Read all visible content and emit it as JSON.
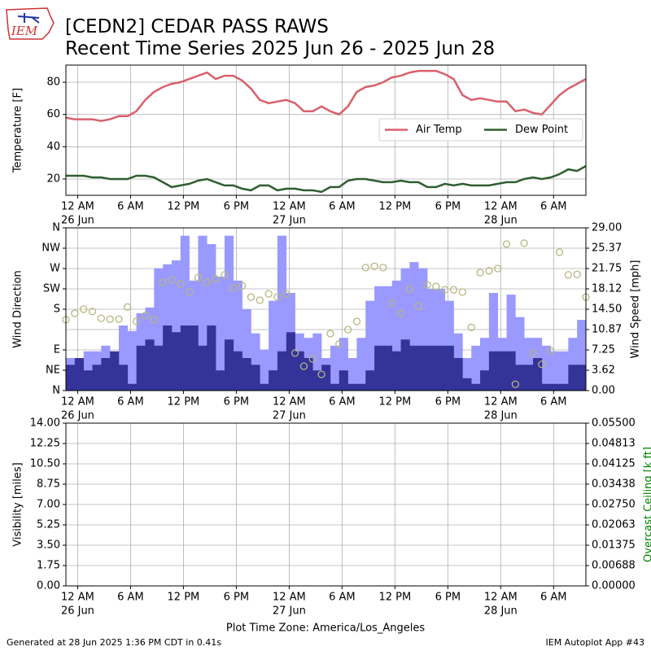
{
  "title": "[CEDN2] CEDAR PASS RAWS",
  "subtitle": "Recent Time Series 2025 Jun 26 - 2025 Jun 28",
  "logo": "IEM",
  "xlabel": "Plot Time Zone: America/Los_Angeles",
  "footer_left": "Generated at 28 Jun 2025 1:36 PM CDT in 0.41s",
  "footer_right": "IEM Autoplot App #43",
  "chart_data": [
    {
      "type": "line",
      "ylabel": "Temperature [F]",
      "xlim": [
        "2025-06-25T22:40",
        "2025-06-28T09:40"
      ],
      "xticks": [
        {
          "value": "2025-06-26T00:00",
          "label": "12 AM",
          "date": "26 Jun"
        },
        {
          "value": "2025-06-26T06:00",
          "label": "6 AM"
        },
        {
          "value": "2025-06-26T12:00",
          "label": "12 PM"
        },
        {
          "value": "2025-06-26T18:00",
          "label": "6 PM"
        },
        {
          "value": "2025-06-27T00:00",
          "label": "12 AM",
          "date": "27 Jun"
        },
        {
          "value": "2025-06-27T06:00",
          "label": "6 AM"
        },
        {
          "value": "2025-06-27T12:00",
          "label": "12 PM"
        },
        {
          "value": "2025-06-27T18:00",
          "label": "6 PM"
        },
        {
          "value": "2025-06-28T00:00",
          "label": "12 AM",
          "date": "28 Jun"
        },
        {
          "value": "2025-06-28T06:00",
          "label": "6 AM"
        }
      ],
      "ylim": [
        9.9,
        90.6
      ],
      "yticks": [
        20,
        40,
        60,
        80
      ],
      "grid": "y",
      "legend": "center right",
      "x": [
        "2025-06-25T22:40",
        "2025-06-25T23:40",
        "2025-06-26T00:40",
        "2025-06-26T01:40",
        "2025-06-26T02:40",
        "2025-06-26T03:40",
        "2025-06-26T04:40",
        "2025-06-26T05:40",
        "2025-06-26T06:40",
        "2025-06-26T07:40",
        "2025-06-26T08:40",
        "2025-06-26T09:40",
        "2025-06-26T10:40",
        "2025-06-26T11:40",
        "2025-06-26T12:40",
        "2025-06-26T13:40",
        "2025-06-26T14:40",
        "2025-06-26T15:40",
        "2025-06-26T16:40",
        "2025-06-26T17:40",
        "2025-06-26T18:40",
        "2025-06-26T19:40",
        "2025-06-26T20:40",
        "2025-06-26T21:40",
        "2025-06-26T22:40",
        "2025-06-26T23:40",
        "2025-06-27T00:40",
        "2025-06-27T01:40",
        "2025-06-27T02:40",
        "2025-06-27T03:40",
        "2025-06-27T04:40",
        "2025-06-27T05:40",
        "2025-06-27T06:40",
        "2025-06-27T07:40",
        "2025-06-27T08:40",
        "2025-06-27T09:40",
        "2025-06-27T10:40",
        "2025-06-27T11:40",
        "2025-06-27T12:40",
        "2025-06-27T13:40",
        "2025-06-27T14:40",
        "2025-06-27T15:40",
        "2025-06-27T16:40",
        "2025-06-27T17:40",
        "2025-06-27T18:40",
        "2025-06-27T19:40",
        "2025-06-27T20:40",
        "2025-06-27T21:40",
        "2025-06-27T22:40",
        "2025-06-27T23:40",
        "2025-06-28T00:40",
        "2025-06-28T01:40",
        "2025-06-28T02:40",
        "2025-06-28T03:40",
        "2025-06-28T04:40",
        "2025-06-28T05:40",
        "2025-06-28T06:40",
        "2025-06-28T07:40",
        "2025-06-28T08:40",
        "2025-06-28T09:40"
      ],
      "series": [
        {
          "name": "Air Temp",
          "color": "#d9606b",
          "type": "line",
          "values": [
            58,
            57,
            57,
            57,
            56,
            57,
            59,
            59,
            62,
            69,
            74,
            77,
            79,
            80,
            82,
            84,
            86,
            82,
            84,
            84,
            81,
            76,
            69,
            67,
            68,
            69,
            67,
            62,
            62,
            65,
            62,
            60,
            65,
            74,
            77,
            78,
            80,
            83,
            84,
            86,
            87,
            87,
            87,
            85,
            82,
            72,
            69,
            70,
            69,
            68,
            68,
            62,
            63,
            61,
            60,
            66,
            72,
            76,
            79,
            82
          ]
        },
        {
          "name": "Dew Point",
          "color": "#2e5f30",
          "type": "line",
          "values": [
            22,
            22,
            22,
            21,
            21,
            20,
            20,
            20,
            22,
            22,
            21,
            18,
            15,
            16,
            17,
            19,
            20,
            18,
            16,
            16,
            14,
            13,
            16,
            16,
            13,
            14,
            14,
            13,
            13,
            12,
            15,
            15,
            19,
            20,
            20,
            19,
            18,
            18,
            19,
            18,
            18,
            15,
            15,
            17,
            16,
            17,
            16,
            16,
            16,
            17,
            18,
            18,
            20,
            21,
            20,
            21,
            23,
            26,
            25,
            28
          ]
        }
      ]
    },
    {
      "type": "bar",
      "ylabel": "Wind Direction",
      "y2label": "Wind Speed [mph]",
      "xlim": [
        "2025-06-25T22:40",
        "2025-06-28T09:40"
      ],
      "xticks": [
        {
          "value": "2025-06-26T00:00",
          "label": "12 AM",
          "date": "26 Jun"
        },
        {
          "value": "2025-06-26T06:00",
          "label": "6 AM"
        },
        {
          "value": "2025-06-26T12:00",
          "label": "12 PM"
        },
        {
          "value": "2025-06-26T18:00",
          "label": "6 PM"
        },
        {
          "value": "2025-06-27T00:00",
          "label": "12 AM",
          "date": "27 Jun"
        },
        {
          "value": "2025-06-27T06:00",
          "label": "6 AM"
        },
        {
          "value": "2025-06-27T12:00",
          "label": "12 PM"
        },
        {
          "value": "2025-06-27T18:00",
          "label": "6 PM"
        },
        {
          "value": "2025-06-28T00:00",
          "label": "12 AM",
          "date": "28 Jun"
        },
        {
          "value": "2025-06-28T06:00",
          "label": "6 AM"
        }
      ],
      "ylim": [
        0,
        360
      ],
      "yticks": [
        {
          "value": 0,
          "label": "N"
        },
        {
          "value": 45,
          "label": "NE"
        },
        {
          "value": 90,
          "label": "E"
        },
        {
          "value": 180,
          "label": "S"
        },
        {
          "value": 225,
          "label": "SW"
        },
        {
          "value": 270,
          "label": "W"
        },
        {
          "value": 315,
          "label": "NW"
        },
        {
          "value": 360,
          "label": "N"
        }
      ],
      "y2lim": [
        0,
        29
      ],
      "y2ticks": [
        {
          "value": 0,
          "label": "0.00"
        },
        {
          "value": 3.625,
          "label": "3.62"
        },
        {
          "value": 7.25,
          "label": "7.25"
        },
        {
          "value": 10.875,
          "label": "10.87"
        },
        {
          "value": 14.5,
          "label": "14.50"
        },
        {
          "value": 18.125,
          "label": "18.12"
        },
        {
          "value": 21.75,
          "label": "21.75"
        },
        {
          "value": 25.375,
          "label": "25.37"
        },
        {
          "value": 29,
          "label": "29.00"
        }
      ],
      "grid": "y2",
      "x": [
        "2025-06-25T22:40",
        "2025-06-25T23:40",
        "2025-06-26T00:40",
        "2025-06-26T01:40",
        "2025-06-26T02:40",
        "2025-06-26T03:40",
        "2025-06-26T04:40",
        "2025-06-26T05:40",
        "2025-06-26T06:40",
        "2025-06-26T07:40",
        "2025-06-26T08:40",
        "2025-06-26T09:40",
        "2025-06-26T10:40",
        "2025-06-26T11:40",
        "2025-06-26T12:40",
        "2025-06-26T13:40",
        "2025-06-26T14:40",
        "2025-06-26T15:40",
        "2025-06-26T16:40",
        "2025-06-26T17:40",
        "2025-06-26T18:40",
        "2025-06-26T19:40",
        "2025-06-26T20:40",
        "2025-06-26T21:40",
        "2025-06-26T22:40",
        "2025-06-26T23:40",
        "2025-06-27T00:40",
        "2025-06-27T01:40",
        "2025-06-27T02:40",
        "2025-06-27T03:40",
        "2025-06-27T04:40",
        "2025-06-27T05:40",
        "2025-06-27T06:40",
        "2025-06-27T07:40",
        "2025-06-27T08:40",
        "2025-06-27T09:40",
        "2025-06-27T10:40",
        "2025-06-27T11:40",
        "2025-06-27T12:40",
        "2025-06-27T13:40",
        "2025-06-27T14:40",
        "2025-06-27T15:40",
        "2025-06-27T16:40",
        "2025-06-27T17:40",
        "2025-06-27T18:40",
        "2025-06-27T19:40",
        "2025-06-27T20:40",
        "2025-06-27T21:40",
        "2025-06-27T22:40",
        "2025-06-27T23:40",
        "2025-06-28T00:40",
        "2025-06-28T01:40",
        "2025-06-28T02:40",
        "2025-06-28T03:40",
        "2025-06-28T04:40",
        "2025-06-28T05:40",
        "2025-06-28T06:40",
        "2025-06-28T07:40",
        "2025-06-28T08:40",
        "2025-06-28T09:40"
      ],
      "series": [
        {
          "color": "#9999ff",
          "type": "bar",
          "axis": "y2",
          "values": [
            5.8,
            5.8,
            7.0,
            7.0,
            8.0,
            7.0,
            11.6,
            10.6,
            13.8,
            14.8,
            21.8,
            22.5,
            23.2,
            27.6,
            19.6,
            27.6,
            26.1,
            20.3,
            27.6,
            19.6,
            14.5,
            10.2,
            7.3,
            16.0,
            27.6,
            17.4,
            10.2,
            9.4,
            10.2,
            5.8,
            8.0,
            9.4,
            5.8,
            9.4,
            16.0,
            18.6,
            18.6,
            19.6,
            21.8,
            22.9,
            21.8,
            18.1,
            18.1,
            16.0,
            10.2,
            5.8,
            8.0,
            9.4,
            17.4,
            9.4,
            17.1,
            13.1,
            9.4,
            9.4,
            8.0,
            7.0,
            7.0,
            9.4,
            12.6,
            12.6
          ]
        },
        {
          "color": "#333399",
          "type": "bar",
          "axis": "y2",
          "values": [
            4.6,
            5.8,
            3.6,
            4.6,
            5.8,
            7.0,
            4.6,
            1.2,
            8.0,
            9.1,
            8.0,
            11.6,
            10.4,
            11.6,
            11.6,
            8.0,
            11.6,
            3.6,
            9.1,
            7.0,
            5.8,
            4.6,
            1.2,
            3.6,
            7.0,
            10.4,
            7.0,
            5.8,
            3.6,
            4.6,
            1.2,
            3.6,
            1.2,
            1.2,
            3.6,
            8.0,
            8.0,
            7.0,
            9.1,
            8.0,
            8.0,
            8.0,
            8.0,
            8.0,
            5.8,
            2.2,
            1.2,
            3.6,
            7.0,
            7.0,
            7.0,
            4.6,
            4.6,
            5.8,
            1.2,
            1.2,
            1.2,
            4.6,
            4.6,
            4.6
          ]
        },
        {
          "color": "#b6b680",
          "type": "scatter",
          "values": [
            157,
            171,
            180,
            175,
            160,
            158,
            158,
            185,
            153,
            166,
            157,
            239,
            245,
            236,
            218,
            250,
            239,
            247,
            256,
            227,
            232,
            207,
            200,
            214,
            207,
            214,
            83,
            54,
            70,
            36,
            126,
            103,
            135,
            153,
            272,
            275,
            272,
            193,
            171,
            225,
            187,
            234,
            230,
            223,
            223,
            218,
            140,
            261,
            265,
            270,
            324,
            14,
            326,
            83,
            58,
            88,
            306,
            256,
            257,
            207
          ]
        }
      ]
    },
    {
      "type": "line",
      "ylabel": "Visibility [miles]",
      "y2label": "Overcast Ceiling [k ft]",
      "y2label_color": "#008000",
      "xlim": [
        "2025-06-25T22:40",
        "2025-06-28T09:40"
      ],
      "xticks": [
        {
          "value": "2025-06-26T00:00",
          "label": "12 AM",
          "date": "26 Jun"
        },
        {
          "value": "2025-06-26T06:00",
          "label": "6 AM"
        },
        {
          "value": "2025-06-26T12:00",
          "label": "12 PM"
        },
        {
          "value": "2025-06-26T18:00",
          "label": "6 PM"
        },
        {
          "value": "2025-06-27T00:00",
          "label": "12 AM",
          "date": "27 Jun"
        },
        {
          "value": "2025-06-27T06:00",
          "label": "6 AM"
        },
        {
          "value": "2025-06-27T12:00",
          "label": "12 PM"
        },
        {
          "value": "2025-06-27T18:00",
          "label": "6 PM"
        },
        {
          "value": "2025-06-28T00:00",
          "label": "12 AM",
          "date": "28 Jun"
        },
        {
          "value": "2025-06-28T06:00",
          "label": "6 AM"
        }
      ],
      "ylim": [
        0,
        14
      ],
      "yticks": [
        {
          "value": 0,
          "label": "0.00"
        },
        {
          "value": 1.75,
          "label": "1.75"
        },
        {
          "value": 3.5,
          "label": "3.50"
        },
        {
          "value": 5.25,
          "label": "5.25"
        },
        {
          "value": 7,
          "label": "7.00"
        },
        {
          "value": 8.75,
          "label": "8.75"
        },
        {
          "value": 10.5,
          "label": "10.50"
        },
        {
          "value": 12.25,
          "label": "12.25"
        },
        {
          "value": 14,
          "label": "14.00"
        }
      ],
      "y2lim": [
        0,
        0.055
      ],
      "y2ticks": [
        {
          "value": 0,
          "label": "0.00000"
        },
        {
          "value": 0.006875,
          "label": "0.00688"
        },
        {
          "value": 0.01375,
          "label": "0.01375"
        },
        {
          "value": 0.020625,
          "label": "0.02063"
        },
        {
          "value": 0.0275,
          "label": "0.02750"
        },
        {
          "value": 0.034375,
          "label": "0.03438"
        },
        {
          "value": 0.04125,
          "label": "0.04125"
        },
        {
          "value": 0.048125,
          "label": "0.04813"
        },
        {
          "value": 0.055,
          "label": "0.05500"
        }
      ],
      "grid": "y",
      "series": []
    }
  ]
}
